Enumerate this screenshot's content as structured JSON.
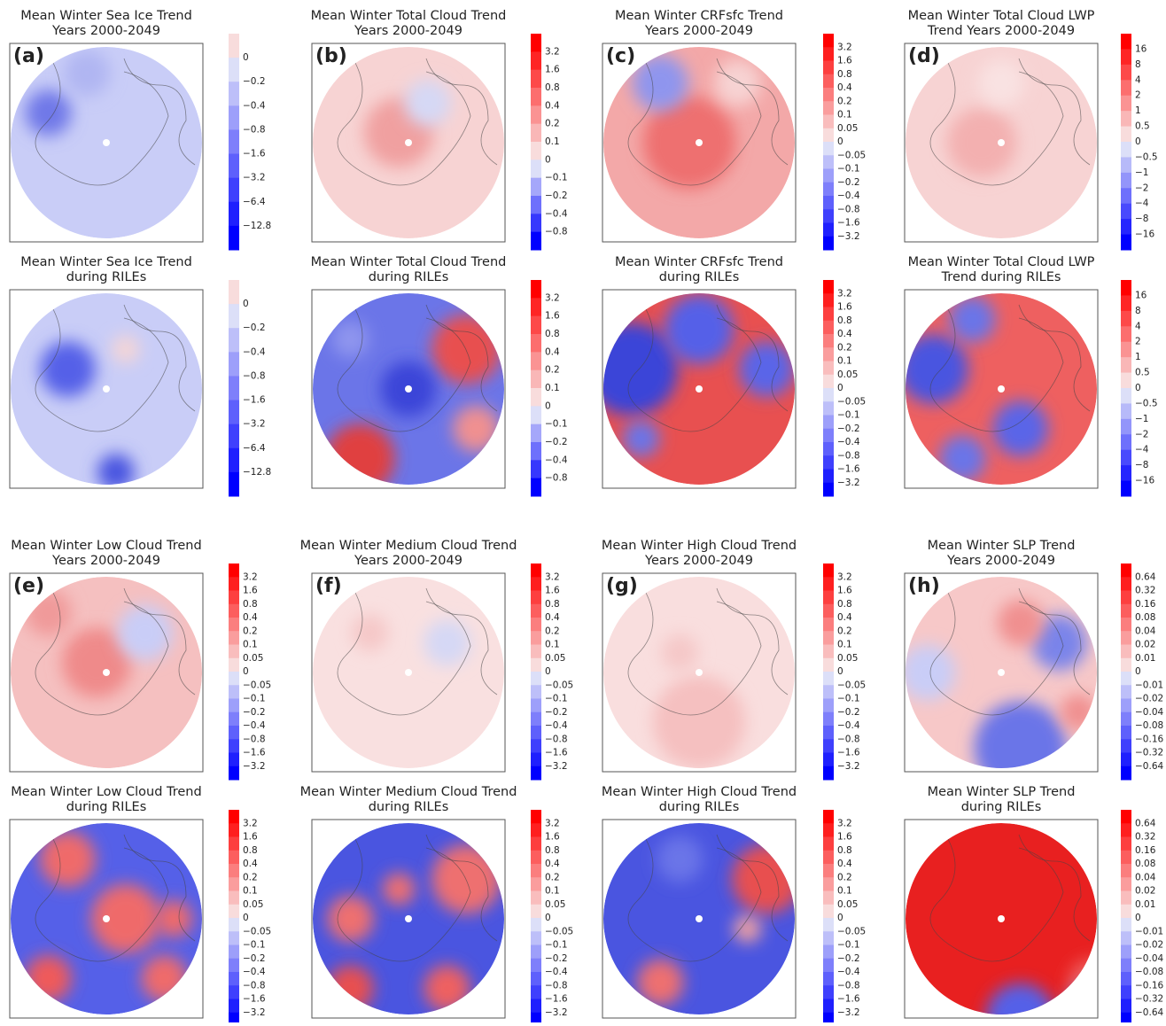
{
  "panels": [
    {
      "label": "(a)",
      "title": [
        "Mean Winter Sea Ice Trend",
        "Years 2000-2049"
      ],
      "colorbar": [
        "0",
        "−0.2",
        "−0.4",
        "−0.8",
        "−1.6",
        "−3.2",
        "−6.4",
        "−12.8"
      ]
    },
    {
      "label": "(b)",
      "title": [
        "Mean Winter Total Cloud Trend",
        "Years 2000-2049"
      ],
      "colorbar": [
        "3.2",
        "1.6",
        "0.8",
        "0.4",
        "0.2",
        "0.1",
        "0",
        "−0.1",
        "−0.2",
        "−0.4",
        "−0.8"
      ]
    },
    {
      "label": "(c)",
      "title": [
        "Mean Winter CRFsfc Trend",
        "Years 2000-2049"
      ],
      "colorbar": [
        "3.2",
        "1.6",
        "0.8",
        "0.4",
        "0.2",
        "0.1",
        "0.05",
        "0",
        "−0.05",
        "−0.1",
        "−0.2",
        "−0.4",
        "−0.8",
        "−1.6",
        "−3.2"
      ]
    },
    {
      "label": "(d)",
      "title": [
        "Mean Winter Total Cloud LWP",
        "Trend Years 2000-2049"
      ],
      "colorbar": [
        "16",
        "8",
        "4",
        "2",
        "1",
        "0.5",
        "0",
        "−0.5",
        "−1",
        "−2",
        "−4",
        "−8",
        "−16"
      ]
    },
    {
      "title": [
        "Mean Winter Sea Ice Trend",
        "during RILEs"
      ],
      "colorbar": [
        "0",
        "−0.2",
        "−0.4",
        "−0.8",
        "−1.6",
        "−3.2",
        "−6.4",
        "−12.8"
      ]
    },
    {
      "title": [
        "Mean Winter Total Cloud Trend",
        "during RILEs"
      ],
      "colorbar": [
        "3.2",
        "1.6",
        "0.8",
        "0.4",
        "0.2",
        "0.1",
        "0",
        "−0.1",
        "−0.2",
        "−0.4",
        "−0.8"
      ]
    },
    {
      "title": [
        "Mean Winter CRFsfc Trend",
        "during RILEs"
      ],
      "colorbar": [
        "3.2",
        "1.6",
        "0.8",
        "0.4",
        "0.2",
        "0.1",
        "0.05",
        "0",
        "−0.05",
        "−0.1",
        "−0.2",
        "−0.4",
        "−0.8",
        "−1.6",
        "−3.2"
      ]
    },
    {
      "title": [
        "Mean Winter Total Cloud LWP",
        "Trend during RILEs"
      ],
      "colorbar": [
        "16",
        "8",
        "4",
        "2",
        "1",
        "0.5",
        "0",
        "−0.5",
        "−1",
        "−2",
        "−4",
        "−8",
        "−16"
      ]
    },
    {
      "label": "(e)",
      "title": [
        "Mean Winter Low Cloud Trend",
        "Years 2000-2049"
      ],
      "colorbar": [
        "3.2",
        "1.6",
        "0.8",
        "0.4",
        "0.2",
        "0.1",
        "0.05",
        "0",
        "−0.05",
        "−0.1",
        "−0.2",
        "−0.4",
        "−0.8",
        "−1.6",
        "−3.2"
      ]
    },
    {
      "label": "(f)",
      "title": [
        "Mean Winter Medium Cloud Trend",
        "Years 2000-2049"
      ],
      "colorbar": [
        "3.2",
        "1.6",
        "0.8",
        "0.4",
        "0.2",
        "0.1",
        "0.05",
        "0",
        "−0.05",
        "−0.1",
        "−0.2",
        "−0.4",
        "−0.8",
        "−1.6",
        "−3.2"
      ]
    },
    {
      "label": "(g)",
      "title": [
        "Mean Winter High Cloud Trend",
        "Years 2000-2049"
      ],
      "colorbar": [
        "3.2",
        "1.6",
        "0.8",
        "0.4",
        "0.2",
        "0.1",
        "0.05",
        "0",
        "−0.05",
        "−0.1",
        "−0.2",
        "−0.4",
        "−0.8",
        "−1.6",
        "−3.2"
      ]
    },
    {
      "label": "(h)",
      "title": [
        "Mean Winter SLP Trend",
        "Years 2000-2049"
      ],
      "colorbar": [
        "0.64",
        "0.32",
        "0.16",
        "0.08",
        "0.04",
        "0.02",
        "0.01",
        "0",
        "−0.01",
        "−0.02",
        "−0.04",
        "−0.08",
        "−0.16",
        "−0.32",
        "−0.64"
      ]
    },
    {
      "title": [
        "Mean Winter Low Cloud Trend",
        "during RILEs"
      ],
      "colorbar": [
        "3.2",
        "1.6",
        "0.8",
        "0.4",
        "0.2",
        "0.1",
        "0.05",
        "0",
        "−0.05",
        "−0.1",
        "−0.2",
        "−0.4",
        "−0.8",
        "−1.6",
        "−3.2"
      ]
    },
    {
      "title": [
        "Mean Winter Medium Cloud Trend",
        "during RILEs"
      ],
      "colorbar": [
        "3.2",
        "1.6",
        "0.8",
        "0.4",
        "0.2",
        "0.1",
        "0.05",
        "0",
        "−0.05",
        "−0.1",
        "−0.2",
        "−0.4",
        "−0.8",
        "−1.6",
        "−3.2"
      ]
    },
    {
      "title": [
        "Mean Winter High Cloud Trend",
        "during RILEs"
      ],
      "colorbar": [
        "3.2",
        "1.6",
        "0.8",
        "0.4",
        "0.2",
        "0.1",
        "0.05",
        "0",
        "−0.05",
        "−0.1",
        "−0.2",
        "−0.4",
        "−0.8",
        "−1.6",
        "−3.2"
      ]
    },
    {
      "title": [
        "Mean Winter SLP Trend",
        "during RILEs"
      ],
      "colorbar": [
        "0.64",
        "0.32",
        "0.16",
        "0.08",
        "0.04",
        "0.02",
        "0.01",
        "0",
        "−0.01",
        "−0.02",
        "−0.04",
        "−0.08",
        "−0.16",
        "−0.32",
        "−0.64"
      ]
    }
  ]
}
